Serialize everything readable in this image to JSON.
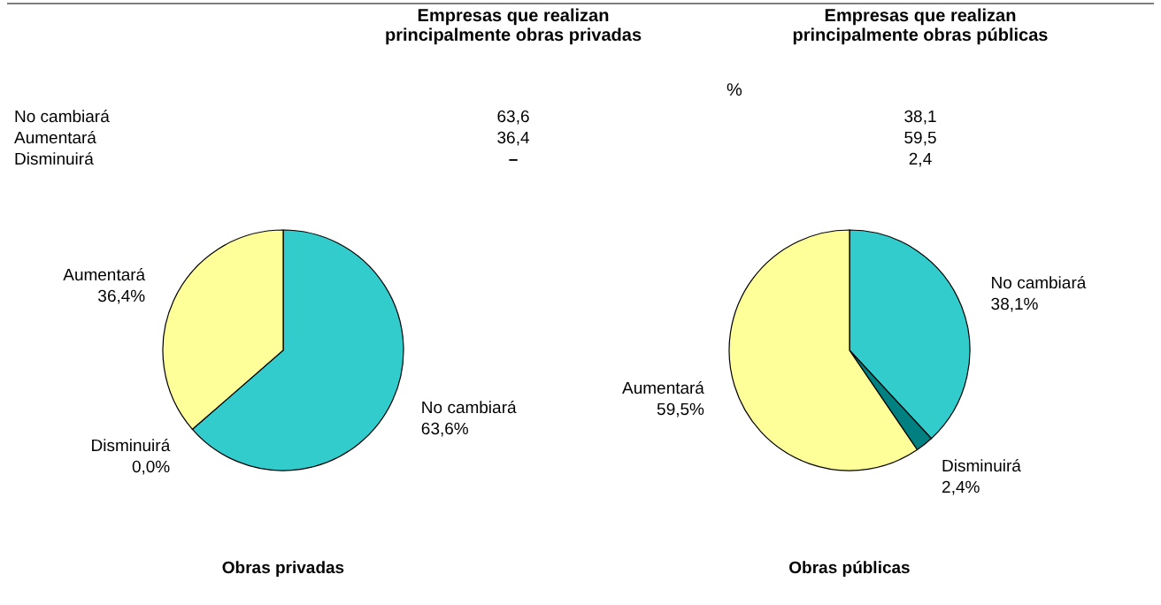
{
  "chart_data": [
    {
      "type": "other",
      "categories": [
        "No cambiará",
        "Aumentará",
        "Disminuirá"
      ],
      "annotations": [
        "%"
      ],
      "series": [
        {
          "name": "Empresas que realizan principalmente obras privadas",
          "values": [
            63.6,
            36.4,
            null
          ],
          "value_labels": [
            "63,6",
            "36,4",
            "–"
          ]
        },
        {
          "name": "Empresas que realizan principalmente obras públicas",
          "values": [
            38.1,
            59.5,
            2.4
          ],
          "value_labels": [
            "38,1",
            "59,5",
            "2,4"
          ]
        }
      ]
    },
    {
      "type": "pie",
      "title": "Obras privadas",
      "categories": [
        "No cambiará",
        "Disminuirá",
        "Aumentará"
      ],
      "values": [
        63.6,
        0,
        36.4
      ],
      "colors": [
        "#33cccc",
        "#008080",
        "#ffff99"
      ],
      "value_labels": [
        "63,6%",
        "0,0%",
        "36,4%"
      ]
    },
    {
      "type": "pie",
      "title": "Obras públicas",
      "categories": [
        "No cambiará",
        "Disminuirá",
        "Aumentará"
      ],
      "values": [
        38.1,
        2.4,
        59.5
      ],
      "colors": [
        "#33cccc",
        "#008080",
        "#ffff99"
      ],
      "value_labels": [
        "38,1%",
        "2,4%",
        "59,5%"
      ]
    }
  ]
}
